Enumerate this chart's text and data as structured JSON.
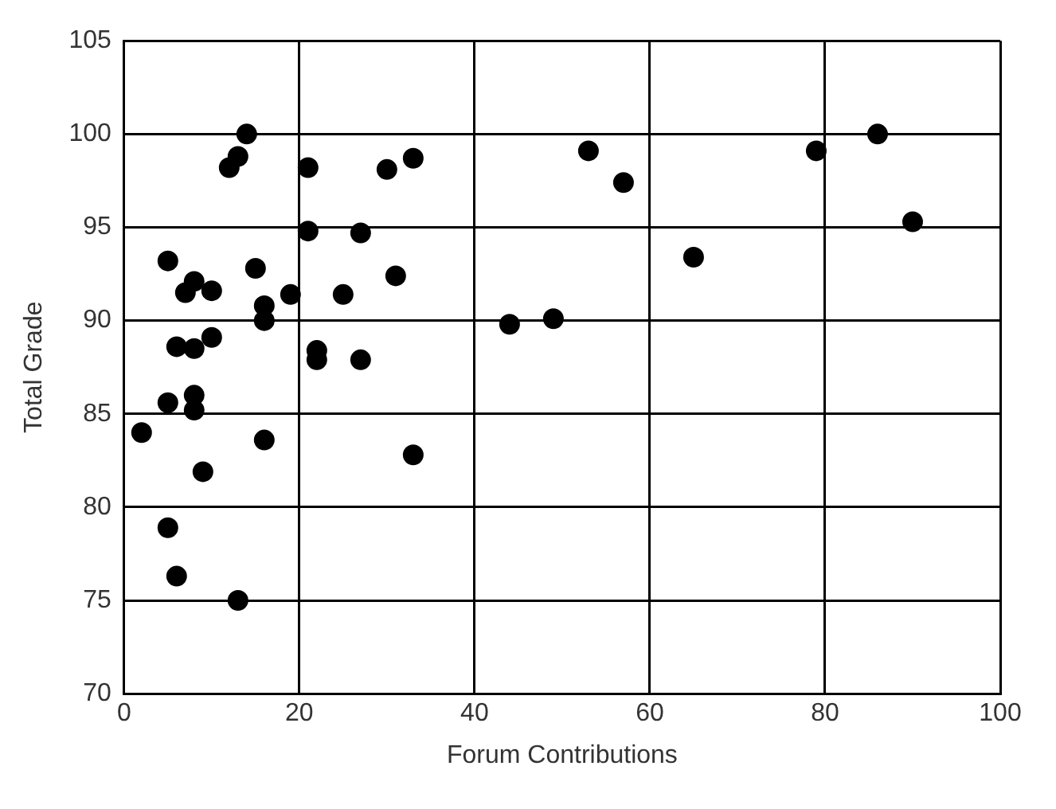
{
  "chart_data": {
    "type": "scatter",
    "xlabel": "Forum Contributions",
    "ylabel": "Total Grade",
    "x": [
      2,
      5,
      5,
      5,
      6,
      6,
      7,
      8,
      8,
      8,
      8,
      9,
      10,
      10,
      12,
      13,
      13,
      14,
      15,
      16,
      16,
      16,
      19,
      21,
      21,
      22,
      22,
      25,
      27,
      27,
      30,
      31,
      33,
      33,
      44,
      49,
      53,
      57,
      65,
      79,
      86,
      90
    ],
    "values": [
      84,
      93.2,
      85.6,
      78.9,
      76.3,
      88.6,
      91.5,
      92.1,
      88.5,
      86,
      85.2,
      81.9,
      91.6,
      89.1,
      98.2,
      98.8,
      75,
      100,
      92.8,
      90.8,
      90,
      83.6,
      91.4,
      98.2,
      94.8,
      88.4,
      87.9,
      91.4,
      94.7,
      87.9,
      98.1,
      92.4,
      98.7,
      82.8,
      89.8,
      90.1,
      99.1,
      97.4,
      93.4,
      99.1,
      100,
      95.3
    ],
    "color": "#000000",
    "marker": "circle",
    "xlim": [
      0,
      100
    ],
    "xticks": [
      0,
      20,
      40,
      60,
      80,
      100
    ],
    "ylim": [
      70,
      105
    ],
    "yticks": [
      70,
      75,
      80,
      85,
      90,
      95,
      100,
      105
    ],
    "grid": true,
    "legend": false
  }
}
